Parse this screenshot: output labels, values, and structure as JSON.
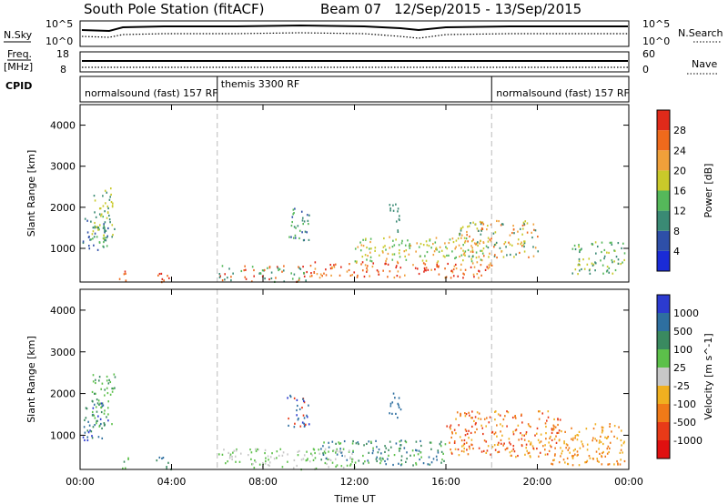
{
  "header": {
    "title": "South Pole Station (fitACF)",
    "beam": "Beam 07",
    "date_range": "12/Sep/2015 - 13/Sep/2015"
  },
  "aux_panels": {
    "nsky_label": "N.Sky",
    "nsearch_label": "N.Search",
    "nsky_ticks": [
      "10^5",
      "10^0"
    ],
    "nsearch_ticks": [
      "10^5",
      "10^0"
    ],
    "freq_label_line1": "Freq.",
    "freq_label_line2": "[MHz]",
    "freq_ticks": [
      "18",
      "8"
    ],
    "nave_label": "Nave",
    "nave_ticks": [
      "60",
      "0"
    ],
    "cpid_label": "CPID",
    "modes": [
      {
        "name": "normalsound (fast) 157 RF",
        "start_hour": 0,
        "end_hour": 6
      },
      {
        "name": "themis 3300 RF",
        "start_hour": 6,
        "end_hour": 18
      },
      {
        "name": "normalsound (fast) 157 RF",
        "start_hour": 18,
        "end_hour": 24
      }
    ]
  },
  "chart_data": [
    {
      "type": "heatmap",
      "parameter": "Power",
      "ylabel": "Slant Range [km]",
      "ylim": [
        180,
        4500
      ],
      "yticks": [
        1000,
        2000,
        3000,
        4000
      ],
      "xlim": [
        0,
        24
      ],
      "xticks": [
        "00:00",
        "04:00",
        "08:00",
        "12:00",
        "16:00",
        "20:00",
        "00:00"
      ],
      "colorbar_label": "Power [dB]",
      "colorbar_ticks": [
        "4",
        "8",
        "12",
        "16",
        "20",
        "24",
        "28"
      ],
      "colorbar_colors": [
        "#1a2bd6",
        "#2e4fa8",
        "#3a8a74",
        "#55b85a",
        "#c9c92a",
        "#f0a03a",
        "#ef6a1c",
        "#e02a1a"
      ],
      "dominant_values_db": [
        4,
        8,
        12,
        16,
        20,
        24,
        28
      ]
    },
    {
      "type": "heatmap",
      "parameter": "Velocity",
      "ylabel": "Slant Range [km]",
      "xlabel": "Time UT",
      "ylim": [
        180,
        4500
      ],
      "yticks": [
        1000,
        2000,
        3000,
        4000
      ],
      "xlim": [
        0,
        24
      ],
      "xticks": [
        "00:00",
        "04:00",
        "08:00",
        "12:00",
        "16:00",
        "20:00",
        "00:00"
      ],
      "colorbar_label": "Velocity [m s^-1]",
      "colorbar_ticks": [
        "1000",
        "500",
        "100",
        "25",
        "-25",
        "-100",
        "-500",
        "-1000"
      ],
      "colorbar_colors": [
        "#2c3bd0",
        "#2e6fa0",
        "#3a8a60",
        "#5cc04a",
        "#c8c8c8",
        "#f0b020",
        "#f07a18",
        "#e83a18",
        "#e01010"
      ]
    }
  ],
  "colors": {
    "divider": "#bbbbbb",
    "axis": "#000000"
  }
}
